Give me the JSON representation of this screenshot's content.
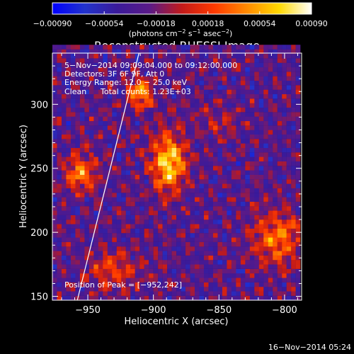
{
  "chart_data": {
    "type": "heatmap",
    "title": "Reconstructed RHESSI Image",
    "xlabel": "Heliocentric X (arcsec)",
    "ylabel": "Heliocentric Y (arcsec)",
    "xlim": [
      -977,
      -787
    ],
    "ylim": [
      147,
      340
    ],
    "xticks": [
      -950,
      -900,
      -850,
      -800
    ],
    "yticks": [
      150,
      200,
      250,
      300
    ],
    "xtick_labels": [
      "−950",
      "−900",
      "−850",
      "−800"
    ],
    "ytick_labels": [
      "150",
      "200",
      "250",
      "300"
    ],
    "colorbar": {
      "label_line1": "(photons cm",
      "label_sup1": "−2",
      "label_line2": " s",
      "label_sup2": "−1",
      "label_line3": " asec",
      "label_sup3": "−2",
      "label_line4": ")",
      "range": [
        -0.0009,
        0.0009
      ],
      "ticks": [
        -0.0009,
        -0.00054,
        -0.00018,
        0.00018,
        0.00054,
        0.0009
      ],
      "tick_labels": [
        "−0.00090",
        "−0.00054",
        "−0.00018",
        "0.00018",
        "0.00054",
        "0.00090"
      ],
      "colors": [
        "#0000ff",
        "#2233cc",
        "#3a1a9a",
        "#5a1a88",
        "#c21a1a",
        "#ff3a00",
        "#ff8a00",
        "#ffd900",
        "#ffffff"
      ]
    },
    "annotations": {
      "time": "5−Nov−2014 09:09:04.000 to 09:12:00.000",
      "detectors": "Detectors: 3F 6F 9F, Att 0",
      "energy": "Energy Range: 12.0 − 25.0 keV",
      "method": "Clean",
      "counts": "Total counts: 1.23E+03",
      "peak": "Position of Peak = [−952,242]"
    },
    "limb_line": {
      "x": [
        -958,
        -911
      ],
      "y": [
        147,
        340
      ]
    },
    "image_grid": {
      "nx": 54,
      "ny": 57,
      "pixel_arcsec": 3.5,
      "x0": -977,
      "y0": 147
    },
    "date_stamp": "16−Nov−2014 05:24"
  }
}
